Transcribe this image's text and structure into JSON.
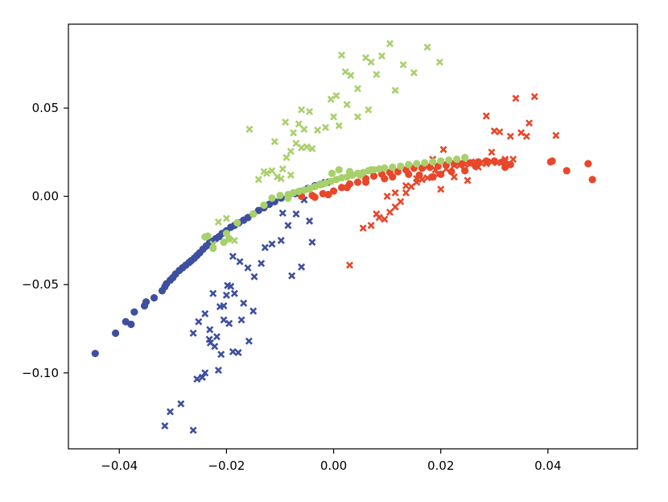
{
  "chart_data": {
    "type": "scatter",
    "title": "",
    "xlabel": "",
    "ylabel": "",
    "xlim": [
      -0.0495,
      0.0567
    ],
    "ylim": [
      -0.143,
      0.0975
    ],
    "xticks": [
      {
        "value": -0.04,
        "label": "−0.04"
      },
      {
        "value": -0.02,
        "label": "−0.02"
      },
      {
        "value": 0.0,
        "label": "0.00"
      },
      {
        "value": 0.02,
        "label": "0.02"
      },
      {
        "value": 0.04,
        "label": "0.04"
      }
    ],
    "yticks": [
      {
        "value": 0.05,
        "label": "0.05"
      },
      {
        "value": 0.0,
        "label": "0.00"
      },
      {
        "value": -0.05,
        "label": "−0.05"
      },
      {
        "value": -0.1,
        "label": "−0.10"
      }
    ],
    "grid": false,
    "legend": "none",
    "series": [
      {
        "color": "#3d4f9e",
        "marker": "circle",
        "x": [
          -0.0445,
          -0.0407,
          -0.0388,
          -0.0378,
          -0.0372,
          -0.0353,
          -0.035,
          -0.0335,
          -0.032,
          -0.0315,
          -0.0312,
          -0.0305,
          -0.03,
          -0.0295,
          -0.0288,
          -0.0282,
          -0.0276,
          -0.027,
          -0.0266,
          -0.026,
          -0.0255,
          -0.025,
          -0.0244,
          -0.0238,
          -0.0232,
          -0.0226,
          -0.022,
          -0.0214,
          -0.0208,
          -0.02,
          -0.0192,
          -0.0185,
          -0.0177,
          -0.0168,
          -0.016,
          -0.015,
          -0.014,
          -0.013,
          -0.012,
          -0.011,
          -0.0098,
          -0.0085,
          -0.0072,
          -0.006,
          -0.0048,
          -0.0035,
          -0.0022,
          -0.001
        ],
        "y": [
          -0.089,
          -0.0775,
          -0.071,
          -0.0725,
          -0.0655,
          -0.062,
          -0.0598,
          -0.0575,
          -0.0535,
          -0.0512,
          -0.0495,
          -0.0475,
          -0.046,
          -0.044,
          -0.042,
          -0.0405,
          -0.039,
          -0.0375,
          -0.0365,
          -0.035,
          -0.0335,
          -0.032,
          -0.03,
          -0.0282,
          -0.0265,
          -0.0255,
          -0.024,
          -0.0228,
          -0.021,
          -0.0195,
          -0.0175,
          -0.0165,
          -0.015,
          -0.0135,
          -0.012,
          -0.01,
          -0.008,
          -0.0065,
          -0.0045,
          -0.003,
          -0.001,
          0.0,
          0.0015,
          0.0028,
          0.0045,
          0.006,
          0.007,
          0.008
        ]
      },
      {
        "color": "#3d4f9e",
        "marker": "x",
        "x": [
          -0.0315,
          -0.0305,
          -0.0285,
          -0.0262,
          -0.0255,
          -0.024,
          -0.0231,
          -0.0222,
          -0.021,
          -0.0205,
          -0.0195,
          -0.0232,
          -0.0245,
          -0.0215,
          -0.0188,
          -0.0178,
          -0.0168,
          -0.0158,
          -0.015,
          -0.0185,
          -0.02,
          -0.0262,
          -0.0252,
          -0.024,
          -0.0225,
          -0.0212,
          -0.0198,
          -0.0188,
          -0.0175,
          -0.016,
          -0.0148,
          -0.0135,
          -0.0128,
          -0.0115,
          -0.0098,
          -0.0085,
          -0.007,
          -0.0055,
          -0.0045,
          -0.004,
          -0.006,
          -0.0078,
          -0.0095,
          -0.0015,
          -0.0192,
          -0.0205,
          -0.0172,
          -0.0218,
          -0.023
        ],
        "y": [
          -0.13,
          -0.122,
          -0.1175,
          -0.1325,
          -0.1035,
          -0.1,
          -0.0755,
          -0.085,
          -0.0895,
          -0.07,
          -0.072,
          -0.081,
          -0.1025,
          -0.0985,
          -0.088,
          -0.0885,
          -0.0605,
          -0.082,
          -0.065,
          -0.055,
          -0.056,
          -0.0775,
          -0.071,
          -0.0665,
          -0.055,
          -0.0625,
          -0.0505,
          -0.034,
          -0.037,
          -0.0405,
          -0.0455,
          -0.038,
          -0.029,
          -0.027,
          -0.025,
          -0.0165,
          -0.01,
          -0.002,
          -0.014,
          -0.026,
          -0.04,
          -0.045,
          -0.0095,
          0.008,
          -0.051,
          -0.062,
          -0.07,
          -0.0795,
          -0.083
        ]
      },
      {
        "color": "#e8472a",
        "marker": "circle",
        "x": [
          -0.006,
          -0.004,
          -0.002,
          0.0,
          0.0015,
          0.003,
          0.0045,
          0.006,
          0.0075,
          0.009,
          0.0105,
          0.012,
          0.0135,
          0.015,
          0.0165,
          0.018,
          0.0195,
          0.021,
          0.0225,
          0.024,
          0.0255,
          0.027,
          0.0285,
          0.03,
          0.0315,
          0.033,
          0.0405,
          0.0408,
          0.0435,
          0.0475,
          0.0483,
          0.022,
          0.02,
          0.0185,
          0.016,
          0.014,
          0.011,
          0.0095,
          0.006,
          0.0025,
          -0.001,
          -0.0035,
          0.0265,
          0.0245,
          0.032
        ],
        "y": [
          0.0,
          0.0005,
          0.0015,
          0.003,
          0.005,
          0.007,
          0.008,
          0.01,
          0.0115,
          0.0125,
          0.0135,
          0.014,
          0.015,
          0.016,
          0.016,
          0.0165,
          0.017,
          0.0178,
          0.0185,
          0.0185,
          0.019,
          0.0195,
          0.02,
          0.02,
          0.0195,
          0.018,
          0.0195,
          0.02,
          0.0145,
          0.0185,
          0.0095,
          0.014,
          0.0125,
          0.011,
          0.012,
          0.0125,
          0.011,
          0.01,
          0.008,
          0.005,
          0.001,
          -0.0005,
          0.017,
          0.0145,
          0.0165
        ]
      },
      {
        "color": "#e8472a",
        "marker": "x",
        "x": [
          0.003,
          0.0055,
          0.007,
          0.008,
          0.0085,
          0.0095,
          0.0105,
          0.0115,
          0.0125,
          0.0135,
          0.0145,
          0.0155,
          0.0165,
          0.0175,
          0.0185,
          0.0195,
          0.021,
          0.0225,
          0.0235,
          0.0245,
          0.0255,
          0.0265,
          0.0275,
          0.0285,
          0.0295,
          0.0305,
          0.032,
          0.0335,
          0.035,
          0.0375,
          0.0415,
          0.034,
          0.0285,
          0.0185,
          0.0205,
          0.0175,
          0.0155,
          0.0135,
          0.0115,
          0.01,
          0.027,
          0.03,
          0.031,
          0.033,
          0.0365,
          0.036,
          0.032,
          0.0295,
          0.025,
          0.0225,
          0.02,
          0.019
        ],
        "y": [
          -0.039,
          -0.018,
          -0.0165,
          -0.01,
          -0.012,
          -0.013,
          -0.009,
          -0.006,
          -0.003,
          0.002,
          0.0055,
          0.008,
          0.0095,
          0.0105,
          0.011,
          0.0125,
          0.0155,
          0.0175,
          0.0175,
          0.018,
          0.0185,
          0.0195,
          0.019,
          0.0185,
          0.0195,
          0.019,
          0.02,
          0.021,
          0.036,
          0.0565,
          0.0345,
          0.0555,
          0.0455,
          0.021,
          0.0265,
          0.017,
          0.01,
          0.006,
          0.002,
          0.0,
          0.0165,
          0.037,
          0.0365,
          0.034,
          0.0415,
          0.034,
          0.021,
          0.025,
          0.009,
          0.011,
          0.004,
          0.015
        ]
      },
      {
        "color": "#a8d06b",
        "marker": "circle",
        "x": [
          -0.0235,
          -0.024,
          -0.02,
          -0.018,
          -0.015,
          -0.013,
          -0.0115,
          -0.01,
          -0.0085,
          -0.0075,
          -0.0065,
          -0.0055,
          -0.0045,
          -0.0035,
          -0.0025,
          -0.0015,
          -0.0005,
          0.0005,
          0.0015,
          0.0025,
          0.0035,
          0.0045,
          0.0055,
          0.0065,
          0.0075,
          0.0085,
          0.0095,
          0.011,
          0.0125,
          0.014,
          0.0155,
          0.017,
          0.0185,
          0.02,
          0.0215,
          0.023,
          0.0245,
          -0.0045,
          -0.0025,
          -0.0003,
          0.001,
          0.003,
          0.005,
          0.007,
          -0.0085,
          -0.0205,
          -0.0195,
          -0.0225
        ],
        "y": [
          -0.0225,
          -0.023,
          -0.021,
          -0.015,
          -0.01,
          -0.005,
          -0.001,
          0.0005,
          0.001,
          0.002,
          0.0028,
          0.0035,
          0.0045,
          0.0055,
          0.0065,
          0.0075,
          0.0085,
          0.0095,
          0.0105,
          0.011,
          0.012,
          0.013,
          0.0135,
          0.0145,
          0.015,
          0.0155,
          0.016,
          0.0165,
          0.017,
          0.018,
          0.0185,
          0.019,
          0.0195,
          0.02,
          0.0205,
          0.021,
          0.022,
          0.004,
          0.007,
          0.013,
          0.015,
          0.014,
          0.012,
          0.015,
          -0.001,
          -0.026,
          -0.024,
          -0.0295
        ]
      },
      {
        "color": "#a8d06b",
        "marker": "x",
        "x": [
          -0.0157,
          -0.014,
          -0.013,
          -0.0115,
          -0.0105,
          -0.0098,
          -0.0088,
          -0.008,
          -0.007,
          -0.006,
          -0.005,
          -0.0045,
          -0.003,
          -0.0015,
          -0.0005,
          0.0005,
          0.0015,
          0.0022,
          0.0032,
          0.0045,
          0.006,
          0.007,
          0.008,
          0.009,
          0.0105,
          0.0115,
          0.013,
          0.015,
          0.0175,
          0.0198,
          -0.009,
          -0.0065,
          -0.0055,
          -0.0075,
          -0.011,
          -0.0125,
          -0.0095,
          -0.008,
          0.0,
          0.001,
          0.0025,
          0.0045,
          0.0065,
          -0.006,
          -0.004,
          -0.0185,
          -0.02,
          -0.0215,
          -0.0225
        ],
        "y": [
          0.038,
          0.0095,
          0.014,
          0.0145,
          0.011,
          0.01,
          0.022,
          0.0255,
          0.03,
          0.0275,
          0.028,
          0.048,
          0.0375,
          0.039,
          0.055,
          0.057,
          0.08,
          0.0705,
          0.0685,
          0.061,
          0.0785,
          0.076,
          0.069,
          0.0795,
          0.0865,
          0.06,
          0.0745,
          0.07,
          0.0845,
          0.076,
          0.042,
          0.041,
          0.038,
          0.036,
          0.031,
          0.013,
          0.0155,
          0.012,
          0.045,
          0.04,
          0.052,
          0.045,
          0.049,
          0.049,
          0.027,
          -0.025,
          -0.0125,
          -0.0145,
          -0.027
        ]
      }
    ]
  }
}
